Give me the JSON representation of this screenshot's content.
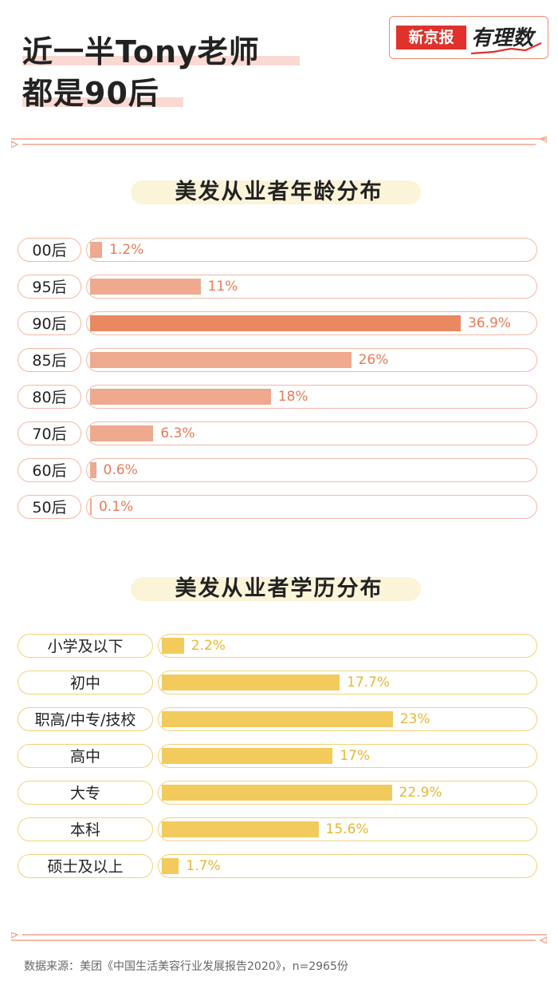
{
  "header": {
    "title_line1": "近一半Tony老师",
    "title_line2": "都是90后"
  },
  "logo": {
    "brand": "新京报",
    "sub": "有理数"
  },
  "chart_data": [
    {
      "type": "bar",
      "orientation": "horizontal",
      "title": "美发从业者年龄分布",
      "categories": [
        "00后",
        "95后",
        "90后",
        "85后",
        "80后",
        "70后",
        "60后",
        "50后"
      ],
      "values": [
        1.2,
        11,
        36.9,
        26,
        18,
        6.3,
        0.6,
        0.1
      ],
      "value_labels": [
        "1.2%",
        "11%",
        "36.9%",
        "26%",
        "18%",
        "6.3%",
        "0.6%",
        "0.1%"
      ],
      "highlight_index": 2,
      "colors": {
        "bar": "#eea98e",
        "highlight": "#e98961",
        "label": "#ea7a58",
        "border": "#f1b9a7"
      }
    },
    {
      "type": "bar",
      "orientation": "horizontal",
      "title": "美发从业者学历分布",
      "categories": [
        "小学及以下",
        "初中",
        "职高/中专/技校",
        "高中",
        "大专",
        "本科",
        "硕士及以上"
      ],
      "values": [
        2.2,
        17.7,
        23,
        17,
        22.9,
        15.6,
        1.7
      ],
      "value_labels": [
        "2.2%",
        "17.7%",
        "23%",
        "17%",
        "22.9%",
        "15.6%",
        "1.7%"
      ],
      "colors": {
        "bar": "#f3ca5c",
        "label": "#e8b730",
        "border": "#f1d27a"
      }
    }
  ],
  "footer": {
    "source": "数据来源：美团《中国生活美容行业发展报告2020》，n=2965份"
  }
}
